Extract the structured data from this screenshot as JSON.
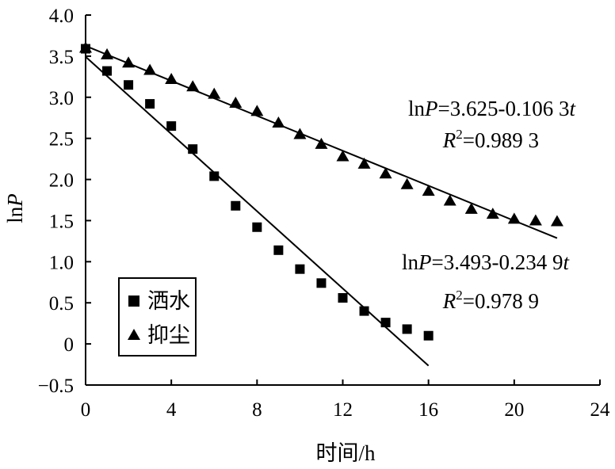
{
  "chart_data": {
    "type": "scatter",
    "xlabel": "时间/h",
    "ylabel_prefix": "ln",
    "ylabel_var": "P",
    "xlim": [
      0,
      24
    ],
    "ylim": [
      -0.5,
      4.0
    ],
    "xticks": [
      0,
      4,
      8,
      12,
      16,
      20,
      24
    ],
    "yticks": [
      -0.5,
      0,
      0.5,
      1.0,
      1.5,
      2.0,
      2.5,
      3.0,
      3.5,
      4.0
    ],
    "ytick_labels": [
      "−0.5",
      "0",
      "0.5",
      "1.0",
      "1.5",
      "2.0",
      "2.5",
      "3.0",
      "3.5",
      "4.0"
    ],
    "grid": false,
    "legend_position": "bottom-left",
    "series": [
      {
        "name": "洒水",
        "marker": "square",
        "x": [
          0,
          1,
          2,
          3,
          4,
          5,
          6,
          7,
          8,
          9,
          10,
          11,
          12,
          13,
          14,
          15,
          16
        ],
        "y": [
          3.59,
          3.32,
          3.15,
          2.92,
          2.65,
          2.37,
          2.04,
          1.68,
          1.42,
          1.14,
          0.91,
          0.74,
          0.56,
          0.4,
          0.26,
          0.18,
          0.1
        ],
        "fit": {
          "intercept": 3.493,
          "slope": -0.2349,
          "x_range": [
            0,
            16
          ]
        },
        "equation": {
          "pre": "ln",
          "var": "P",
          "rhs": "=3.493-0.234 9",
          "tvar": "t"
        },
        "r2": {
          "var": "R",
          "sup": "2",
          "rhs": "=0.978 9"
        }
      },
      {
        "name": "抑尘",
        "marker": "triangle",
        "x": [
          0,
          1,
          2,
          3,
          4,
          5,
          6,
          7,
          8,
          9,
          10,
          11,
          12,
          13,
          14,
          15,
          16,
          17,
          18,
          19,
          20,
          21,
          22
        ],
        "y": [
          3.6,
          3.52,
          3.42,
          3.33,
          3.22,
          3.13,
          3.04,
          2.93,
          2.83,
          2.69,
          2.55,
          2.43,
          2.28,
          2.19,
          2.07,
          1.94,
          1.86,
          1.74,
          1.64,
          1.58,
          1.52,
          1.5,
          1.49
        ],
        "fit": {
          "intercept": 3.625,
          "slope": -0.1063,
          "x_range": [
            0,
            22
          ]
        },
        "equation": {
          "pre": "ln",
          "var": "P",
          "rhs": "=3.625-0.106 3",
          "tvar": "t"
        },
        "r2": {
          "var": "R",
          "sup": "2",
          "rhs": "=0.989 3"
        }
      }
    ]
  }
}
